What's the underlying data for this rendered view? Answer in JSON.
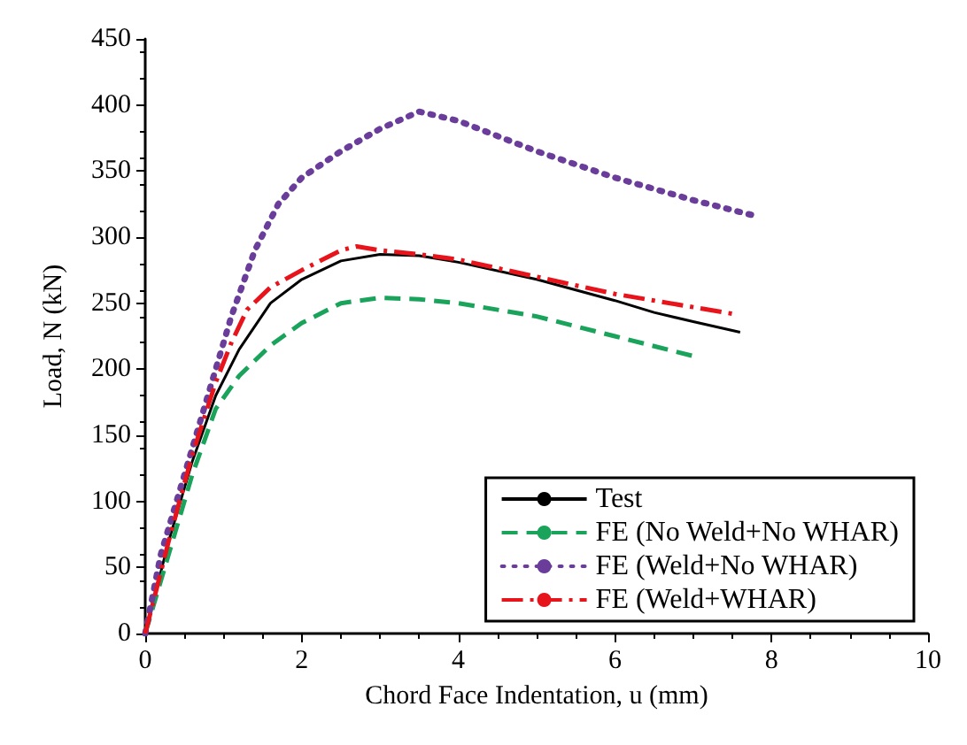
{
  "chart_data": {
    "type": "line",
    "xlabel": "Chord Face Indentation, u (mm)",
    "ylabel": "Load, N (kN)",
    "xlim": [
      0,
      10
    ],
    "xticks": [
      0,
      2,
      4,
      6,
      8,
      10
    ],
    "ylim": [
      0,
      450
    ],
    "yticks": [
      0,
      50,
      100,
      150,
      200,
      250,
      300,
      350,
      400,
      450
    ],
    "grid": false,
    "legend": "bottom right",
    "marker": "none",
    "series": [
      {
        "name": "Test",
        "color": "#000000",
        "line_style": "solid",
        "x": [
          0,
          0.3,
          0.6,
          0.9,
          1.2,
          1.6,
          2,
          2.5,
          3,
          3.5,
          4,
          5,
          6,
          6.5,
          7,
          7.6
        ],
        "values": [
          0,
          70,
          130,
          180,
          215,
          250,
          268,
          282,
          287,
          286,
          281,
          268,
          252,
          243,
          236,
          228
        ]
      },
      {
        "name": "FE (No Weld+No WHAR)",
        "color": "#1aa35a",
        "line_style": "dashed",
        "x": [
          0,
          0.3,
          0.6,
          0.9,
          1.2,
          1.6,
          2,
          2.5,
          3,
          3.5,
          4,
          5,
          6,
          7
        ],
        "values": [
          0,
          60,
          120,
          170,
          195,
          218,
          235,
          250,
          254,
          253,
          250,
          240,
          225,
          210
        ]
      },
      {
        "name": "FE (Weld+No WHAR)",
        "color": "#6a3d9a",
        "line_style": "dotted",
        "x": [
          0,
          0.2,
          0.5,
          0.8,
          1.1,
          1.4,
          1.7,
          2,
          2.5,
          3,
          3.5,
          4,
          5,
          6,
          7,
          7.8
        ],
        "values": [
          0,
          60,
          120,
          180,
          240,
          290,
          325,
          345,
          365,
          382,
          395,
          388,
          365,
          345,
          328,
          316
        ]
      },
      {
        "name": "FE (Weld+WHAR)",
        "color": "#e8141c",
        "line_style": "dashdot",
        "x": [
          0,
          0.3,
          0.6,
          0.9,
          1.1,
          1.3,
          1.6,
          2,
          2.5,
          2.7,
          3,
          3.5,
          4,
          5,
          6,
          7,
          7.5
        ],
        "values": [
          0,
          70,
          135,
          190,
          220,
          245,
          262,
          275,
          290,
          293,
          290,
          287,
          283,
          270,
          257,
          247,
          242
        ]
      }
    ]
  }
}
